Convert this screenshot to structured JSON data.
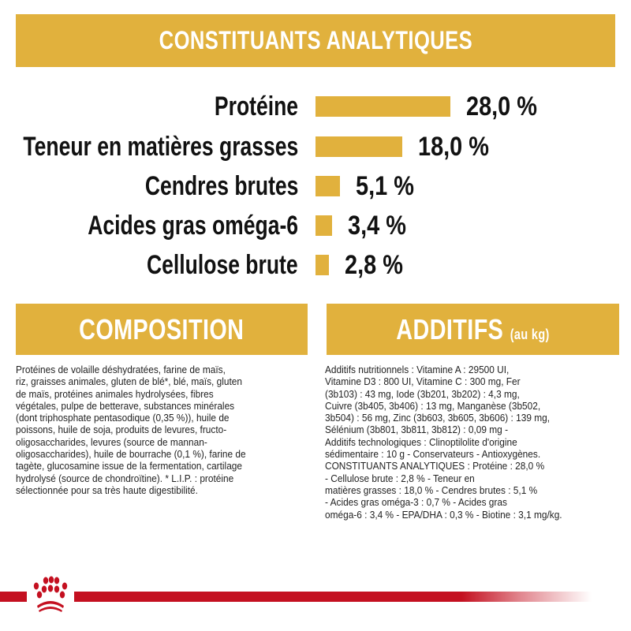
{
  "header": {
    "title": "CONSTITUANTS ANALYTIQUES"
  },
  "nutrients": [
    {
      "label": "Protéine",
      "value": 28.0,
      "value_text": "28,0 %"
    },
    {
      "label": "Teneur en matières grasses",
      "value": 18.0,
      "value_text": "18,0 %"
    },
    {
      "label": "Cendres brutes",
      "value": 5.1,
      "value_text": "5,1 %"
    },
    {
      "label": "Acides gras oméga-6",
      "value": 3.4,
      "value_text": "3,4 %"
    },
    {
      "label": "Cellulose brute",
      "value": 2.8,
      "value_text": "2,8 %"
    }
  ],
  "composition": {
    "title": "COMPOSITION",
    "text": "Protéines de volaille déshydratées, farine de maïs,\nriz, graisses animales, gluten de blé*, blé, maïs, gluten\nde maïs, protéines animales hydrolysées, fibres\nvégétales, pulpe de betterave, substances minérales\n(dont triphosphate pentasodique (0,35 %)), huile de\npoissons, huile de soja, produits de levures, fructo-\noligosaccharides, levures (source de mannan-\noligosaccharides), huile de bourrache (0,1 %), farine de\ntagète, glucosamine issue de la fermentation, cartilage\nhydrolysé (source de chondroïtine). * L.I.P. : protéine\nsélectionnée pour sa très haute digestibilité."
  },
  "additifs": {
    "title": "ADDITIFS",
    "subtitle": "(au kg)",
    "text": "Additifs nutritionnels : Vitamine A : 29500 UI,\nVitamine D3 : 800 UI, Vitamine C : 300 mg, Fer\n(3b103) : 43 mg, Iode (3b201, 3b202) : 4,3 mg,\nCuivre (3b405, 3b406) : 13 mg, Manganèse (3b502,\n3b504) : 56 mg, Zinc (3b603, 3b605, 3b606) : 139 mg,\nSélénium (3b801, 3b811, 3b812) : 0,09 mg -\nAdditifs technologiques : Clinoptilolite d'origine\nsédimentaire : 10 g - Conservateurs - Antioxygènes.\nCONSTITUANTS ANALYTIQUES : Protéine : 28,0 %\n- Cellulose brute : 2,8 % - Teneur en\nmatières grasses : 18,0 % - Cendres brutes : 5,1 %\n- Acides gras oméga-3 : 0,7 % - Acides gras\noméga-6 : 3,4 % - EPA/DHA : 0,3 % - Biotine : 3,1 mg/kg."
  },
  "colors": {
    "accent": "#E1B13D",
    "brand_red": "#C41020"
  },
  "logo": {
    "icon": "royal-canin-crown-icon"
  }
}
